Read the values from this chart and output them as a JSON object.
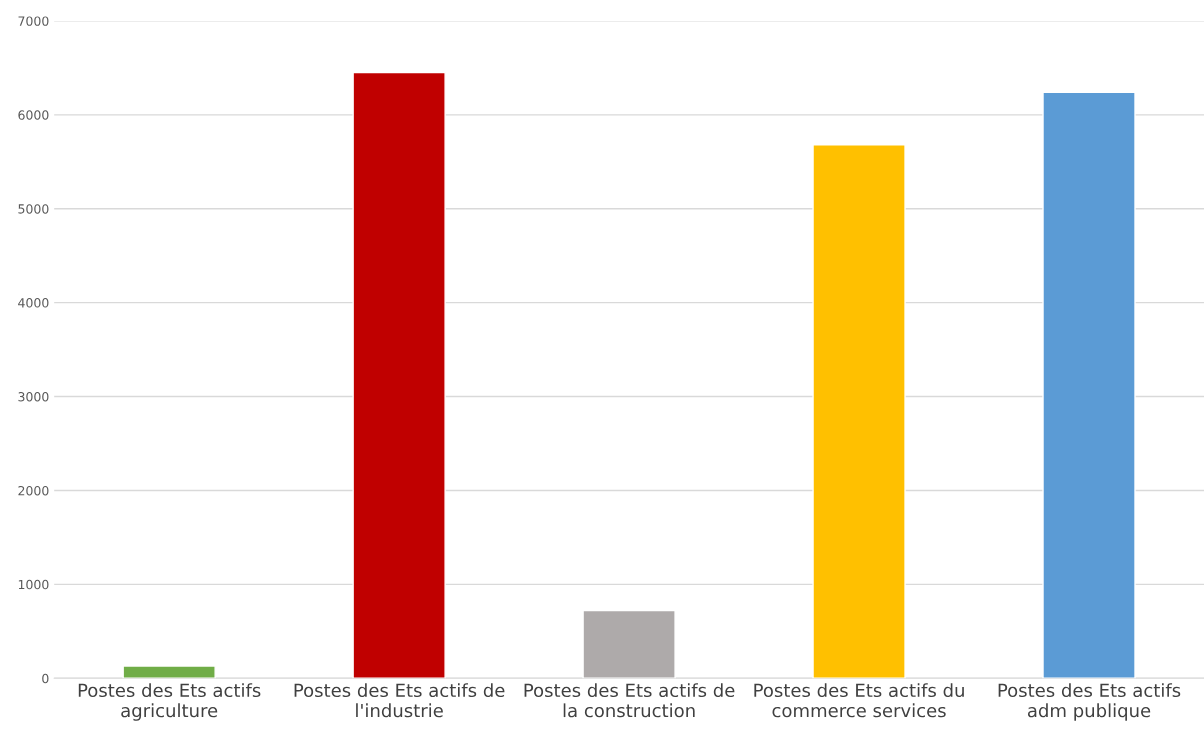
{
  "chart_data": {
    "type": "bar",
    "categories": [
      "Postes des Ets actifs\nagriculture",
      "Postes des Ets actifs de\nl'industrie",
      "Postes des Ets actifs de\nla construction",
      "Postes des Ets actifs du\ncommerce services",
      "Postes des Ets actifs\nadm publique"
    ],
    "values": [
      130,
      6450,
      720,
      5680,
      6240
    ],
    "colors": [
      "#70ad47",
      "#c00000",
      "#aeaaaa",
      "#ffc000",
      "#5b9bd5"
    ],
    "ylim": [
      0,
      7000
    ],
    "yticks": [
      0,
      1000,
      2000,
      3000,
      4000,
      5000,
      6000,
      7000
    ],
    "grid": "y"
  }
}
